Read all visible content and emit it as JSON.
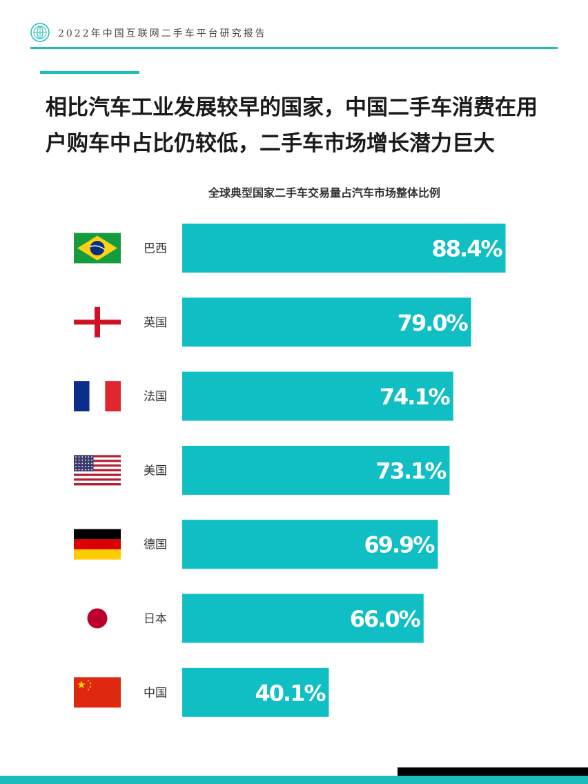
{
  "header": {
    "title": "2022年中国互联网二手车平台研究报告",
    "logo_icon": "globe-logo-icon"
  },
  "headline": {
    "line1": "相比汽车工业发展较早的国家，中国二手车消费在用",
    "line2": "户购车中占比仍较低，二手车市场增长潜力巨大"
  },
  "colors": {
    "accent": "#1dbdbd",
    "bar": "#0fbfc4",
    "footer_dark": "#000000"
  },
  "chart_data": {
    "type": "bar",
    "orientation": "horizontal",
    "title": "全球典型国家二手车交易量占汽车市场整体比例",
    "categories": [
      "巴西",
      "英国",
      "法国",
      "美国",
      "德国",
      "日本",
      "中国"
    ],
    "values": [
      88.4,
      79.0,
      74.1,
      73.1,
      69.9,
      66.0,
      40.1
    ],
    "value_labels": [
      "88.4%",
      "79.0%",
      "74.1%",
      "73.1%",
      "69.9%",
      "66.0%",
      "40.1%"
    ],
    "flag_icons": [
      "brazil-flag-icon",
      "uk-flag-icon",
      "france-flag-icon",
      "usa-flag-icon",
      "germany-flag-icon",
      "japan-flag-icon",
      "china-flag-icon"
    ],
    "xlim": [
      0,
      100
    ],
    "grid": false,
    "legend": "none"
  }
}
